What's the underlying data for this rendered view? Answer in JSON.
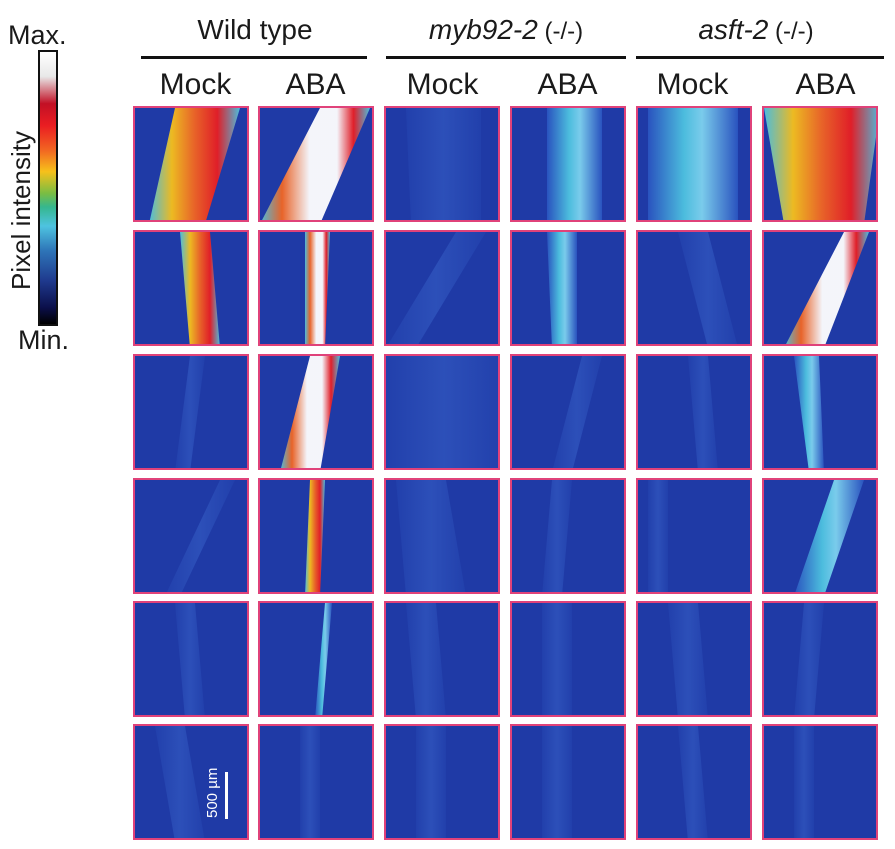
{
  "scale": {
    "max_label": "Max.",
    "min_label": "Min.",
    "axis_label": "Pixel intensity"
  },
  "groups": [
    {
      "name": "Wild type",
      "suffix": ""
    },
    {
      "name": "myb92-2",
      "suffix": " (-/-)"
    },
    {
      "name": "asft-2",
      "suffix": " (-/-)"
    }
  ],
  "conditions": [
    "Mock",
    "ABA",
    "Mock",
    "ABA",
    "Mock",
    "ABA"
  ],
  "scale_bar": "500 µm",
  "colors": {
    "panel_border": "#e0427a",
    "background_blue": "#1f3aa6",
    "text": "#1a1a1a"
  }
}
